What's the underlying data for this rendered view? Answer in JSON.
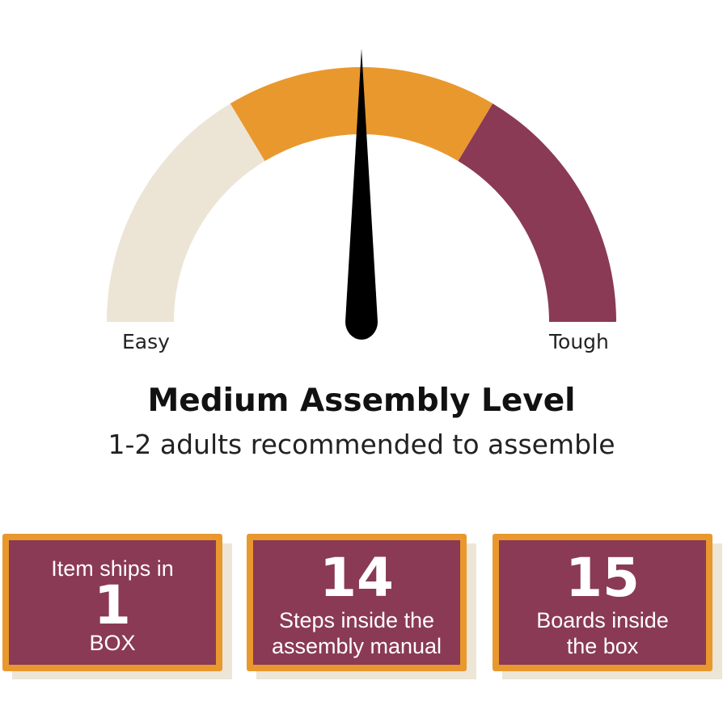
{
  "gauge": {
    "min_label": "Easy",
    "max_label": "Tough",
    "level": 0.5,
    "segments": [
      {
        "color": "#ece5d6"
      },
      {
        "color": "#e9982e"
      },
      {
        "color": "#8a3a55"
      }
    ],
    "needle_color": "#000000"
  },
  "heading": "Medium Assembly Level",
  "subheading": "1-2 adults recommended to assemble",
  "cards": [
    {
      "top": "Item ships in",
      "number": "1",
      "bottom": "BOX"
    },
    {
      "number": "14",
      "line1": "Steps inside the",
      "line2": "assembly manual"
    },
    {
      "number": "15",
      "line1": "Boards inside",
      "line2": "the box"
    }
  ]
}
